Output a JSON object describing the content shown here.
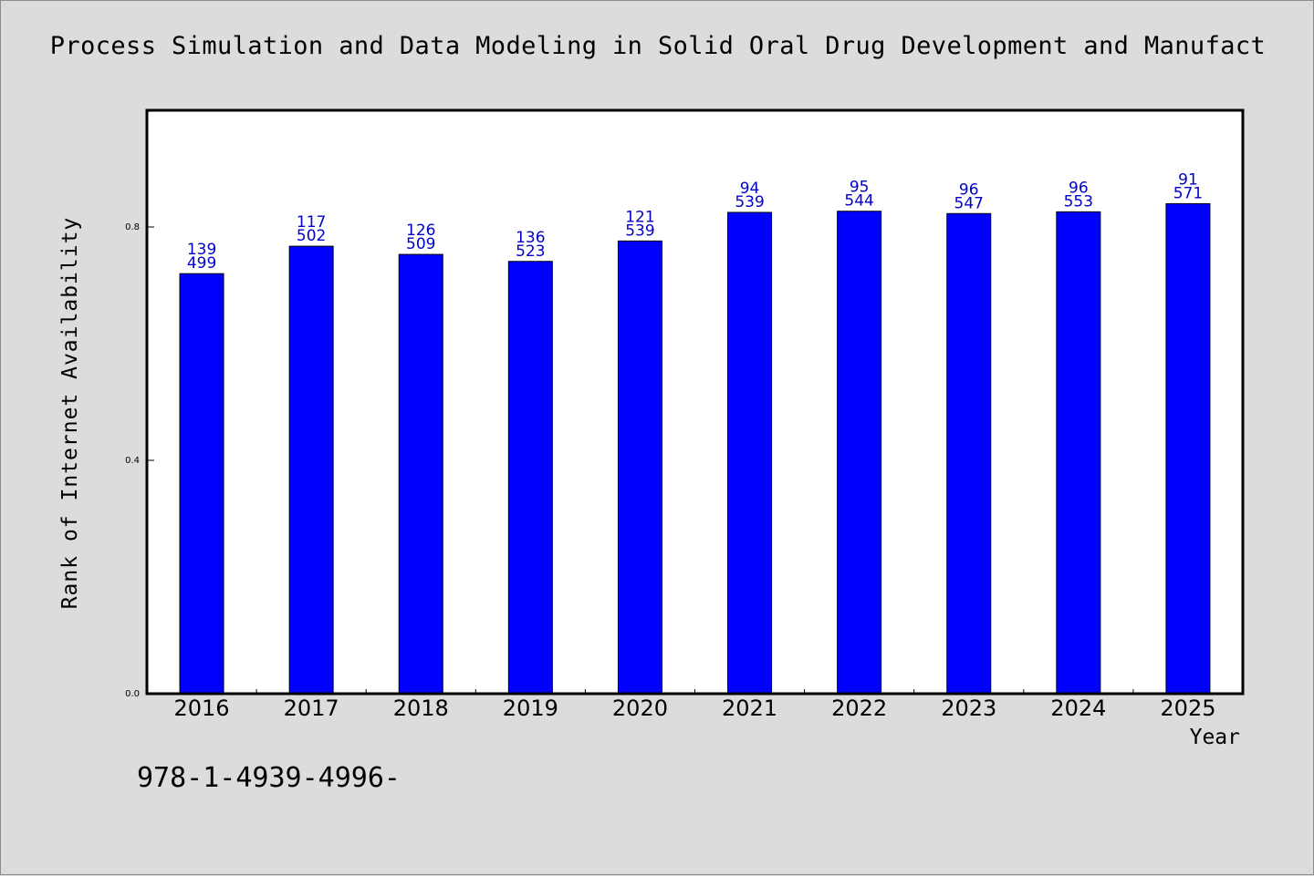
{
  "chart_data": {
    "type": "bar",
    "title": "Process Simulation and Data Modeling in Solid Oral Drug Development and Manufact",
    "xlabel": "Year",
    "ylabel": "Rank of Internet Availability",
    "categories": [
      "2016",
      "2017",
      "2018",
      "2019",
      "2020",
      "2021",
      "2022",
      "2023",
      "2024",
      "2025"
    ],
    "values": [
      0.72,
      0.767,
      0.753,
      0.741,
      0.776,
      0.825,
      0.827,
      0.823,
      0.826,
      0.84
    ],
    "annotations": [
      [
        "139",
        "499"
      ],
      [
        "117",
        "502"
      ],
      [
        "126",
        "509"
      ],
      [
        "136",
        "523"
      ],
      [
        "121",
        "539"
      ],
      [
        "94",
        "539"
      ],
      [
        "95",
        "544"
      ],
      [
        "96",
        "547"
      ],
      [
        "96",
        "553"
      ],
      [
        "91",
        "571"
      ]
    ],
    "ylim": [
      0,
      1.0
    ],
    "yticks": [
      "0.0",
      "0.4",
      "0.8"
    ],
    "grid": false,
    "legend": "none",
    "colors": {
      "bar": "#0000ff",
      "label": "#0000cc",
      "background": "#dcdcdc",
      "plot_area": "#ffffff"
    }
  },
  "footer": {
    "text": "978-1-4939-4996-"
  }
}
